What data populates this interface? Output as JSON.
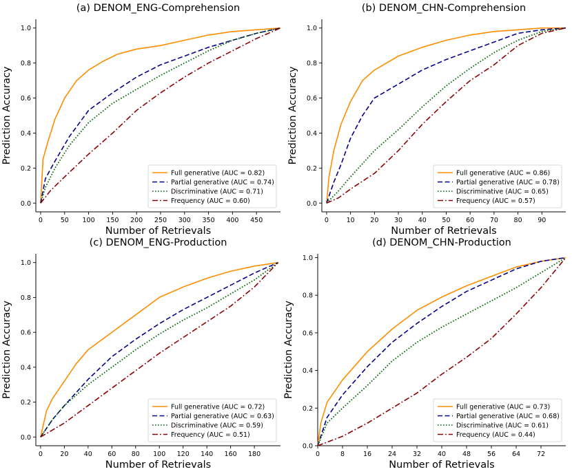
{
  "chart_data": [
    {
      "type": "line",
      "title": "(a) DENOM_ENG-Comprehension",
      "xlabel": "Number of Retrievals",
      "ylabel": "Prediction Accuracy",
      "xlim": [
        -10,
        500
      ],
      "ylim": [
        -0.05,
        1.05
      ],
      "xticks": [
        0,
        50,
        100,
        150,
        200,
        250,
        300,
        350,
        400,
        450
      ],
      "yticks": [
        "0.0",
        "0.2",
        "0.4",
        "0.6",
        "0.8",
        "1.0"
      ],
      "legend_position": "lower-right",
      "series": [
        {
          "name": "Full generative (AUC = 0.82)",
          "style": "solid",
          "color": "#ff8c00",
          "points": [
            [
              0,
              0.0
            ],
            [
              5,
              0.25
            ],
            [
              15,
              0.35
            ],
            [
              30,
              0.48
            ],
            [
              50,
              0.6
            ],
            [
              75,
              0.7
            ],
            [
              100,
              0.76
            ],
            [
              130,
              0.81
            ],
            [
              160,
              0.85
            ],
            [
              200,
              0.88
            ],
            [
              250,
              0.9
            ],
            [
              300,
              0.93
            ],
            [
              350,
              0.96
            ],
            [
              400,
              0.98
            ],
            [
              450,
              0.99
            ],
            [
              500,
              1.0
            ]
          ]
        },
        {
          "name": "Partial generative (AUC = 0.74)",
          "style": "dashed",
          "color": "#00008b",
          "points": [
            [
              0,
              0.0
            ],
            [
              10,
              0.14
            ],
            [
              30,
              0.24
            ],
            [
              60,
              0.38
            ],
            [
              100,
              0.53
            ],
            [
              150,
              0.63
            ],
            [
              200,
              0.72
            ],
            [
              250,
              0.79
            ],
            [
              300,
              0.84
            ],
            [
              350,
              0.89
            ],
            [
              400,
              0.93
            ],
            [
              450,
              0.97
            ],
            [
              500,
              1.0
            ]
          ]
        },
        {
          "name": "Discriminative (AUC = 0.71)",
          "style": "dotted",
          "color": "#006400",
          "points": [
            [
              0,
              0.0
            ],
            [
              10,
              0.09
            ],
            [
              30,
              0.2
            ],
            [
              60,
              0.33
            ],
            [
              100,
              0.46
            ],
            [
              150,
              0.57
            ],
            [
              200,
              0.65
            ],
            [
              250,
              0.73
            ],
            [
              300,
              0.8
            ],
            [
              350,
              0.87
            ],
            [
              400,
              0.93
            ],
            [
              450,
              0.97
            ],
            [
              500,
              1.0
            ]
          ]
        },
        {
          "name": "Frequency (AUC = 0.60)",
          "style": "dashdot",
          "color": "#8b0000",
          "points": [
            [
              0,
              0.0
            ],
            [
              20,
              0.07
            ],
            [
              50,
              0.15
            ],
            [
              100,
              0.28
            ],
            [
              150,
              0.4
            ],
            [
              200,
              0.53
            ],
            [
              250,
              0.63
            ],
            [
              300,
              0.72
            ],
            [
              350,
              0.8
            ],
            [
              400,
              0.87
            ],
            [
              450,
              0.94
            ],
            [
              500,
              1.0
            ]
          ]
        }
      ]
    },
    {
      "type": "line",
      "title": "(b) DENOM_CHN-Comprehension",
      "xlabel": "Number of Retrievals",
      "ylabel": "Prediction Accuracy",
      "xlim": [
        -2,
        100
      ],
      "ylim": [
        -0.05,
        1.05
      ],
      "xticks": [
        0,
        10,
        20,
        30,
        40,
        50,
        60,
        70,
        80,
        90
      ],
      "yticks": [
        "0.0",
        "0.2",
        "0.4",
        "0.6",
        "0.8",
        "1.0"
      ],
      "legend_position": "lower-right",
      "series": [
        {
          "name": "Full generative (AUC = 0.86)",
          "style": "solid",
          "color": "#ff8c00",
          "points": [
            [
              0,
              0.0
            ],
            [
              1,
              0.15
            ],
            [
              3,
              0.3
            ],
            [
              6,
              0.45
            ],
            [
              10,
              0.58
            ],
            [
              15,
              0.7
            ],
            [
              20,
              0.76
            ],
            [
              30,
              0.84
            ],
            [
              40,
              0.89
            ],
            [
              50,
              0.93
            ],
            [
              60,
              0.96
            ],
            [
              70,
              0.98
            ],
            [
              80,
              0.99
            ],
            [
              90,
              1.0
            ],
            [
              100,
              1.0
            ]
          ]
        },
        {
          "name": "Partial generative (AUC = 0.78)",
          "style": "dashed",
          "color": "#00008b",
          "points": [
            [
              0,
              0.0
            ],
            [
              3,
              0.12
            ],
            [
              6,
              0.22
            ],
            [
              10,
              0.37
            ],
            [
              15,
              0.5
            ],
            [
              20,
              0.6
            ],
            [
              30,
              0.68
            ],
            [
              40,
              0.76
            ],
            [
              50,
              0.82
            ],
            [
              60,
              0.87
            ],
            [
              70,
              0.92
            ],
            [
              80,
              0.97
            ],
            [
              90,
              0.99
            ],
            [
              100,
              1.0
            ]
          ]
        },
        {
          "name": "Discriminative (AUC = 0.65)",
          "style": "dotted",
          "color": "#006400",
          "points": [
            [
              0,
              0.0
            ],
            [
              5,
              0.07
            ],
            [
              10,
              0.15
            ],
            [
              20,
              0.3
            ],
            [
              30,
              0.42
            ],
            [
              40,
              0.55
            ],
            [
              50,
              0.67
            ],
            [
              60,
              0.77
            ],
            [
              70,
              0.86
            ],
            [
              80,
              0.93
            ],
            [
              90,
              0.98
            ],
            [
              100,
              1.0
            ]
          ]
        },
        {
          "name": "Frequency (AUC = 0.57)",
          "style": "dashdot",
          "color": "#8b0000",
          "points": [
            [
              0,
              0.0
            ],
            [
              5,
              0.03
            ],
            [
              10,
              0.08
            ],
            [
              20,
              0.17
            ],
            [
              30,
              0.3
            ],
            [
              40,
              0.45
            ],
            [
              50,
              0.58
            ],
            [
              60,
              0.7
            ],
            [
              70,
              0.79
            ],
            [
              80,
              0.9
            ],
            [
              90,
              0.97
            ],
            [
              100,
              1.0
            ]
          ]
        }
      ]
    },
    {
      "type": "line",
      "title": "(c) DENOM_ENG-Production",
      "xlabel": "Number of Retrievals",
      "ylabel": "Prediction Accuracy",
      "xlim": [
        -4,
        202
      ],
      "ylim": [
        -0.05,
        1.05
      ],
      "xticks": [
        0,
        20,
        40,
        60,
        80,
        100,
        120,
        140,
        160,
        180
      ],
      "yticks": [
        "0.0",
        "0.2",
        "0.4",
        "0.6",
        "0.8",
        "1.0"
      ],
      "legend_position": "lower-right",
      "series": [
        {
          "name": "Full generative (AUC = 0.72)",
          "style": "solid",
          "color": "#ff8c00",
          "points": [
            [
              0,
              0.0
            ],
            [
              5,
              0.15
            ],
            [
              10,
              0.22
            ],
            [
              20,
              0.32
            ],
            [
              30,
              0.42
            ],
            [
              40,
              0.5
            ],
            [
              60,
              0.6
            ],
            [
              80,
              0.7
            ],
            [
              100,
              0.8
            ],
            [
              120,
              0.86
            ],
            [
              140,
              0.91
            ],
            [
              160,
              0.95
            ],
            [
              180,
              0.98
            ],
            [
              200,
              1.0
            ]
          ]
        },
        {
          "name": "Partial generative (AUC = 0.63)",
          "style": "dashed",
          "color": "#00008b",
          "points": [
            [
              0,
              0.0
            ],
            [
              10,
              0.1
            ],
            [
              20,
              0.18
            ],
            [
              40,
              0.33
            ],
            [
              60,
              0.46
            ],
            [
              80,
              0.56
            ],
            [
              100,
              0.65
            ],
            [
              120,
              0.73
            ],
            [
              140,
              0.8
            ],
            [
              160,
              0.87
            ],
            [
              180,
              0.94
            ],
            [
              200,
              1.0
            ]
          ]
        },
        {
          "name": "Discriminative (AUC = 0.59)",
          "style": "dotted",
          "color": "#006400",
          "points": [
            [
              0,
              0.0
            ],
            [
              10,
              0.1
            ],
            [
              20,
              0.18
            ],
            [
              40,
              0.3
            ],
            [
              60,
              0.4
            ],
            [
              80,
              0.5
            ],
            [
              100,
              0.59
            ],
            [
              120,
              0.67
            ],
            [
              140,
              0.74
            ],
            [
              160,
              0.82
            ],
            [
              180,
              0.9
            ],
            [
              200,
              1.0
            ]
          ]
        },
        {
          "name": "Frequency (AUC = 0.51)",
          "style": "dashdot",
          "color": "#8b0000",
          "points": [
            [
              0,
              0.0
            ],
            [
              20,
              0.08
            ],
            [
              40,
              0.18
            ],
            [
              60,
              0.28
            ],
            [
              80,
              0.38
            ],
            [
              100,
              0.48
            ],
            [
              120,
              0.57
            ],
            [
              140,
              0.66
            ],
            [
              160,
              0.75
            ],
            [
              180,
              0.86
            ],
            [
              200,
              1.0
            ]
          ]
        }
      ]
    },
    {
      "type": "line",
      "title": "(d) DENOM_CHN-Production",
      "xlabel": "Number of Retrievals",
      "ylabel": "Prediction Accuracy",
      "xlim": [
        0,
        80
      ],
      "ylim": [
        0.0,
        1.02
      ],
      "xticks": [
        0,
        8,
        16,
        24,
        32,
        40,
        48,
        56,
        64,
        72
      ],
      "yticks": [
        "0.0",
        "0.2",
        "0.4",
        "0.6",
        "0.8",
        "1.0"
      ],
      "legend_position": "lower-right",
      "series": [
        {
          "name": "Full generative (AUC = 0.73)",
          "style": "solid",
          "color": "#ff8c00",
          "points": [
            [
              0,
              0.0
            ],
            [
              1,
              0.12
            ],
            [
              3,
              0.23
            ],
            [
              8,
              0.35
            ],
            [
              16,
              0.5
            ],
            [
              24,
              0.62
            ],
            [
              32,
              0.72
            ],
            [
              40,
              0.79
            ],
            [
              48,
              0.85
            ],
            [
              56,
              0.9
            ],
            [
              64,
              0.95
            ],
            [
              72,
              0.98
            ],
            [
              80,
              1.0
            ]
          ]
        },
        {
          "name": "Partial generative (AUC = 0.68)",
          "style": "dashed",
          "color": "#00008b",
          "points": [
            [
              0,
              0.0
            ],
            [
              3,
              0.15
            ],
            [
              8,
              0.27
            ],
            [
              16,
              0.42
            ],
            [
              24,
              0.55
            ],
            [
              32,
              0.65
            ],
            [
              40,
              0.74
            ],
            [
              48,
              0.82
            ],
            [
              56,
              0.88
            ],
            [
              64,
              0.94
            ],
            [
              72,
              0.98
            ],
            [
              80,
              1.0
            ]
          ]
        },
        {
          "name": "Discriminative (AUC = 0.61)",
          "style": "dotted",
          "color": "#006400",
          "points": [
            [
              0,
              0.0
            ],
            [
              3,
              0.12
            ],
            [
              8,
              0.2
            ],
            [
              16,
              0.32
            ],
            [
              24,
              0.45
            ],
            [
              32,
              0.55
            ],
            [
              40,
              0.63
            ],
            [
              48,
              0.7
            ],
            [
              56,
              0.77
            ],
            [
              64,
              0.84
            ],
            [
              72,
              0.92
            ],
            [
              80,
              1.0
            ]
          ]
        },
        {
          "name": "Frequency (AUC = 0.44)",
          "style": "dashdot",
          "color": "#8b0000",
          "points": [
            [
              0,
              0.0
            ],
            [
              8,
              0.05
            ],
            [
              16,
              0.12
            ],
            [
              24,
              0.2
            ],
            [
              32,
              0.28
            ],
            [
              40,
              0.38
            ],
            [
              48,
              0.47
            ],
            [
              56,
              0.57
            ],
            [
              64,
              0.7
            ],
            [
              72,
              0.84
            ],
            [
              80,
              1.0
            ]
          ]
        }
      ]
    }
  ]
}
